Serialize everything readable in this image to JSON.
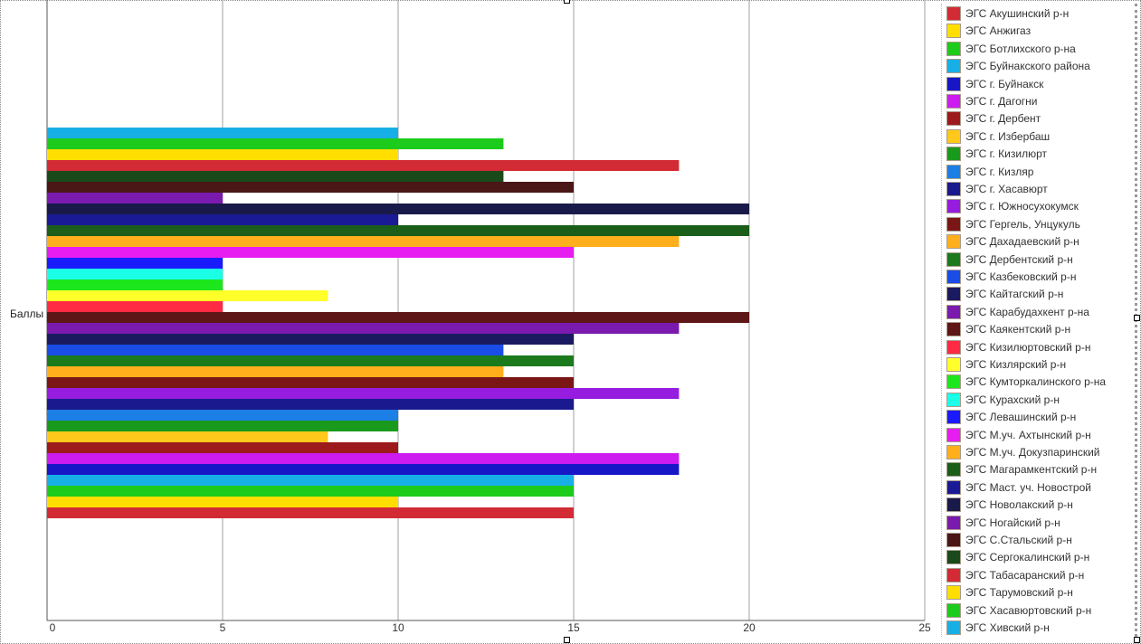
{
  "chart_data": {
    "type": "bar",
    "orientation": "horizontal",
    "categories": [
      "Баллы"
    ],
    "ylabel": "Баллы",
    "xlim": [
      0,
      25
    ],
    "xticks": [
      "0",
      "5",
      "10",
      "15",
      "20",
      "25"
    ],
    "grid": true,
    "legend_position": "right",
    "series": [
      {
        "name": "ЭГС Акушинский р-н",
        "value": 15,
        "color": "#d22b36"
      },
      {
        "name": "ЭГС Анжигаз",
        "value": 10,
        "color": "#ffde00"
      },
      {
        "name": "ЭГС Ботлихского р-на",
        "value": 15,
        "color": "#1ccb1c"
      },
      {
        "name": "ЭГС Буйнакского района",
        "value": 15,
        "color": "#17b0e6"
      },
      {
        "name": "ЭГС г. Буйнакск",
        "value": 18,
        "color": "#1717c8"
      },
      {
        "name": "ЭГС г. Дагогни",
        "value": 18,
        "color": "#cc1cf0"
      },
      {
        "name": "ЭГС г. Дербент",
        "value": 10,
        "color": "#9c1a1c"
      },
      {
        "name": "ЭГС г. Избербаш",
        "value": 8,
        "color": "#ffc81a"
      },
      {
        "name": "ЭГС г. Кизилюрт",
        "value": 10,
        "color": "#1a9a1c"
      },
      {
        "name": "ЭГС г. Кизляр",
        "value": 10,
        "color": "#1c7fe6"
      },
      {
        "name": "ЭГС г. Хасавюрт",
        "value": 15,
        "color": "#1a1a8e"
      },
      {
        "name": "ЭГС г. Южносухокумск",
        "value": 18,
        "color": "#961ce0"
      },
      {
        "name": "ЭГС Гергель, Унцукуль",
        "value": 15,
        "color": "#7a1616"
      },
      {
        "name": "ЭГС Дахадаевский р-н",
        "value": 13,
        "color": "#ffaf1c"
      },
      {
        "name": "ЭГС Дербентский р-н",
        "value": 15,
        "color": "#1a7a1c"
      },
      {
        "name": "ЭГС Казбековский р-н",
        "value": 13,
        "color": "#1a4ce6"
      },
      {
        "name": "ЭГС Кайтагский р-н",
        "value": 15,
        "color": "#1a1a60"
      },
      {
        "name": "ЭГС Карабудахкент р-на",
        "value": 18,
        "color": "#7a1aae"
      },
      {
        "name": "ЭГС Каякентский р-н",
        "value": 20,
        "color": "#5e1616"
      },
      {
        "name": "ЭГС Кизилюртовский р-н",
        "value": 5,
        "color": "#ff2a44"
      },
      {
        "name": "ЭГС Кизлярский р-н",
        "value": 8,
        "color": "#ffff2a"
      },
      {
        "name": "ЭГС Кумторкалинского р-на",
        "value": 5,
        "color": "#1ce61c"
      },
      {
        "name": "ЭГС Курахский р-н",
        "value": 5,
        "color": "#1affe6"
      },
      {
        "name": "ЭГС Левашинский р-н",
        "value": 5,
        "color": "#1a1aff"
      },
      {
        "name": "ЭГС М.уч. Ахтынский р-н",
        "value": 15,
        "color": "#e61cf0"
      },
      {
        "name": "ЭГС М.уч. Докузпаринский",
        "value": 18,
        "color": "#ffae1c"
      },
      {
        "name": "ЭГС Магарамкентский р-н",
        "value": 20,
        "color": "#1a5e1a"
      },
      {
        "name": "ЭГС Маст. уч. Новострой",
        "value": 10,
        "color": "#1a1a96"
      },
      {
        "name": "ЭГС Новолакский р-н",
        "value": 20,
        "color": "#1a1a4a"
      },
      {
        "name": "ЭГС Ногайский р-н",
        "value": 5,
        "color": "#7a1aae"
      },
      {
        "name": "ЭГС С.Стальский р-н",
        "value": 15,
        "color": "#4a1616"
      },
      {
        "name": "ЭГС Сергокалинский р-н",
        "value": 13,
        "color": "#1a4a1a"
      },
      {
        "name": "ЭГС Табасаранский р-н",
        "value": 18,
        "color": "#d22b36"
      },
      {
        "name": "ЭГС Тарумовский р-н",
        "value": 10,
        "color": "#ffde00"
      },
      {
        "name": "ЭГС Хасавюртовский р-н",
        "value": 13,
        "color": "#1ccb1c"
      },
      {
        "name": "ЭГС Хивский р-н",
        "value": 10,
        "color": "#17b0e6"
      }
    ]
  }
}
